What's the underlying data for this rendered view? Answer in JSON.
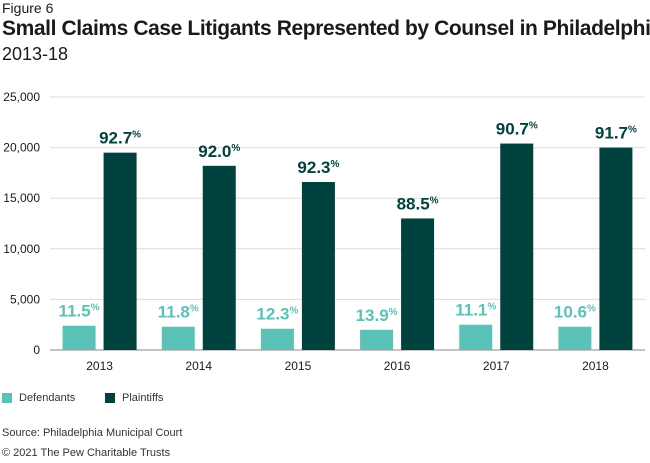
{
  "figure_label": "Figure 6",
  "title": "Small Claims Case Litigants Represented by Counsel in Philadelphia",
  "subtitle": "2013-18",
  "source": "Source: Philadelphia Municipal Court",
  "copyright": "© 2021 The Pew Charitable Trusts",
  "colors": {
    "defendants": "#5bc2b7",
    "plaintiffs": "#00423e"
  },
  "chart_data": {
    "type": "bar",
    "categories": [
      "2013",
      "2014",
      "2015",
      "2016",
      "2017",
      "2018"
    ],
    "series": [
      {
        "name": "Defendants",
        "values": [
          2400,
          2300,
          2100,
          2000,
          2500,
          2300
        ],
        "labels": [
          "11.5",
          "11.8",
          "12.3",
          "13.9",
          "11.1",
          "10.6"
        ]
      },
      {
        "name": "Plaintiffs",
        "values": [
          19500,
          18200,
          16600,
          13000,
          20400,
          20000
        ],
        "labels": [
          "92.7",
          "92.0",
          "92.3",
          "88.5",
          "90.7",
          "91.7"
        ]
      }
    ],
    "label_suffix": "%",
    "ylim": [
      0,
      25000
    ],
    "yticks": [
      0,
      5000,
      10000,
      15000,
      20000,
      25000
    ],
    "ytick_labels": [
      "0",
      "5,000",
      "10,000",
      "15,000",
      "20,000",
      "25,000"
    ],
    "grid": true,
    "legend": "bottom-left"
  }
}
